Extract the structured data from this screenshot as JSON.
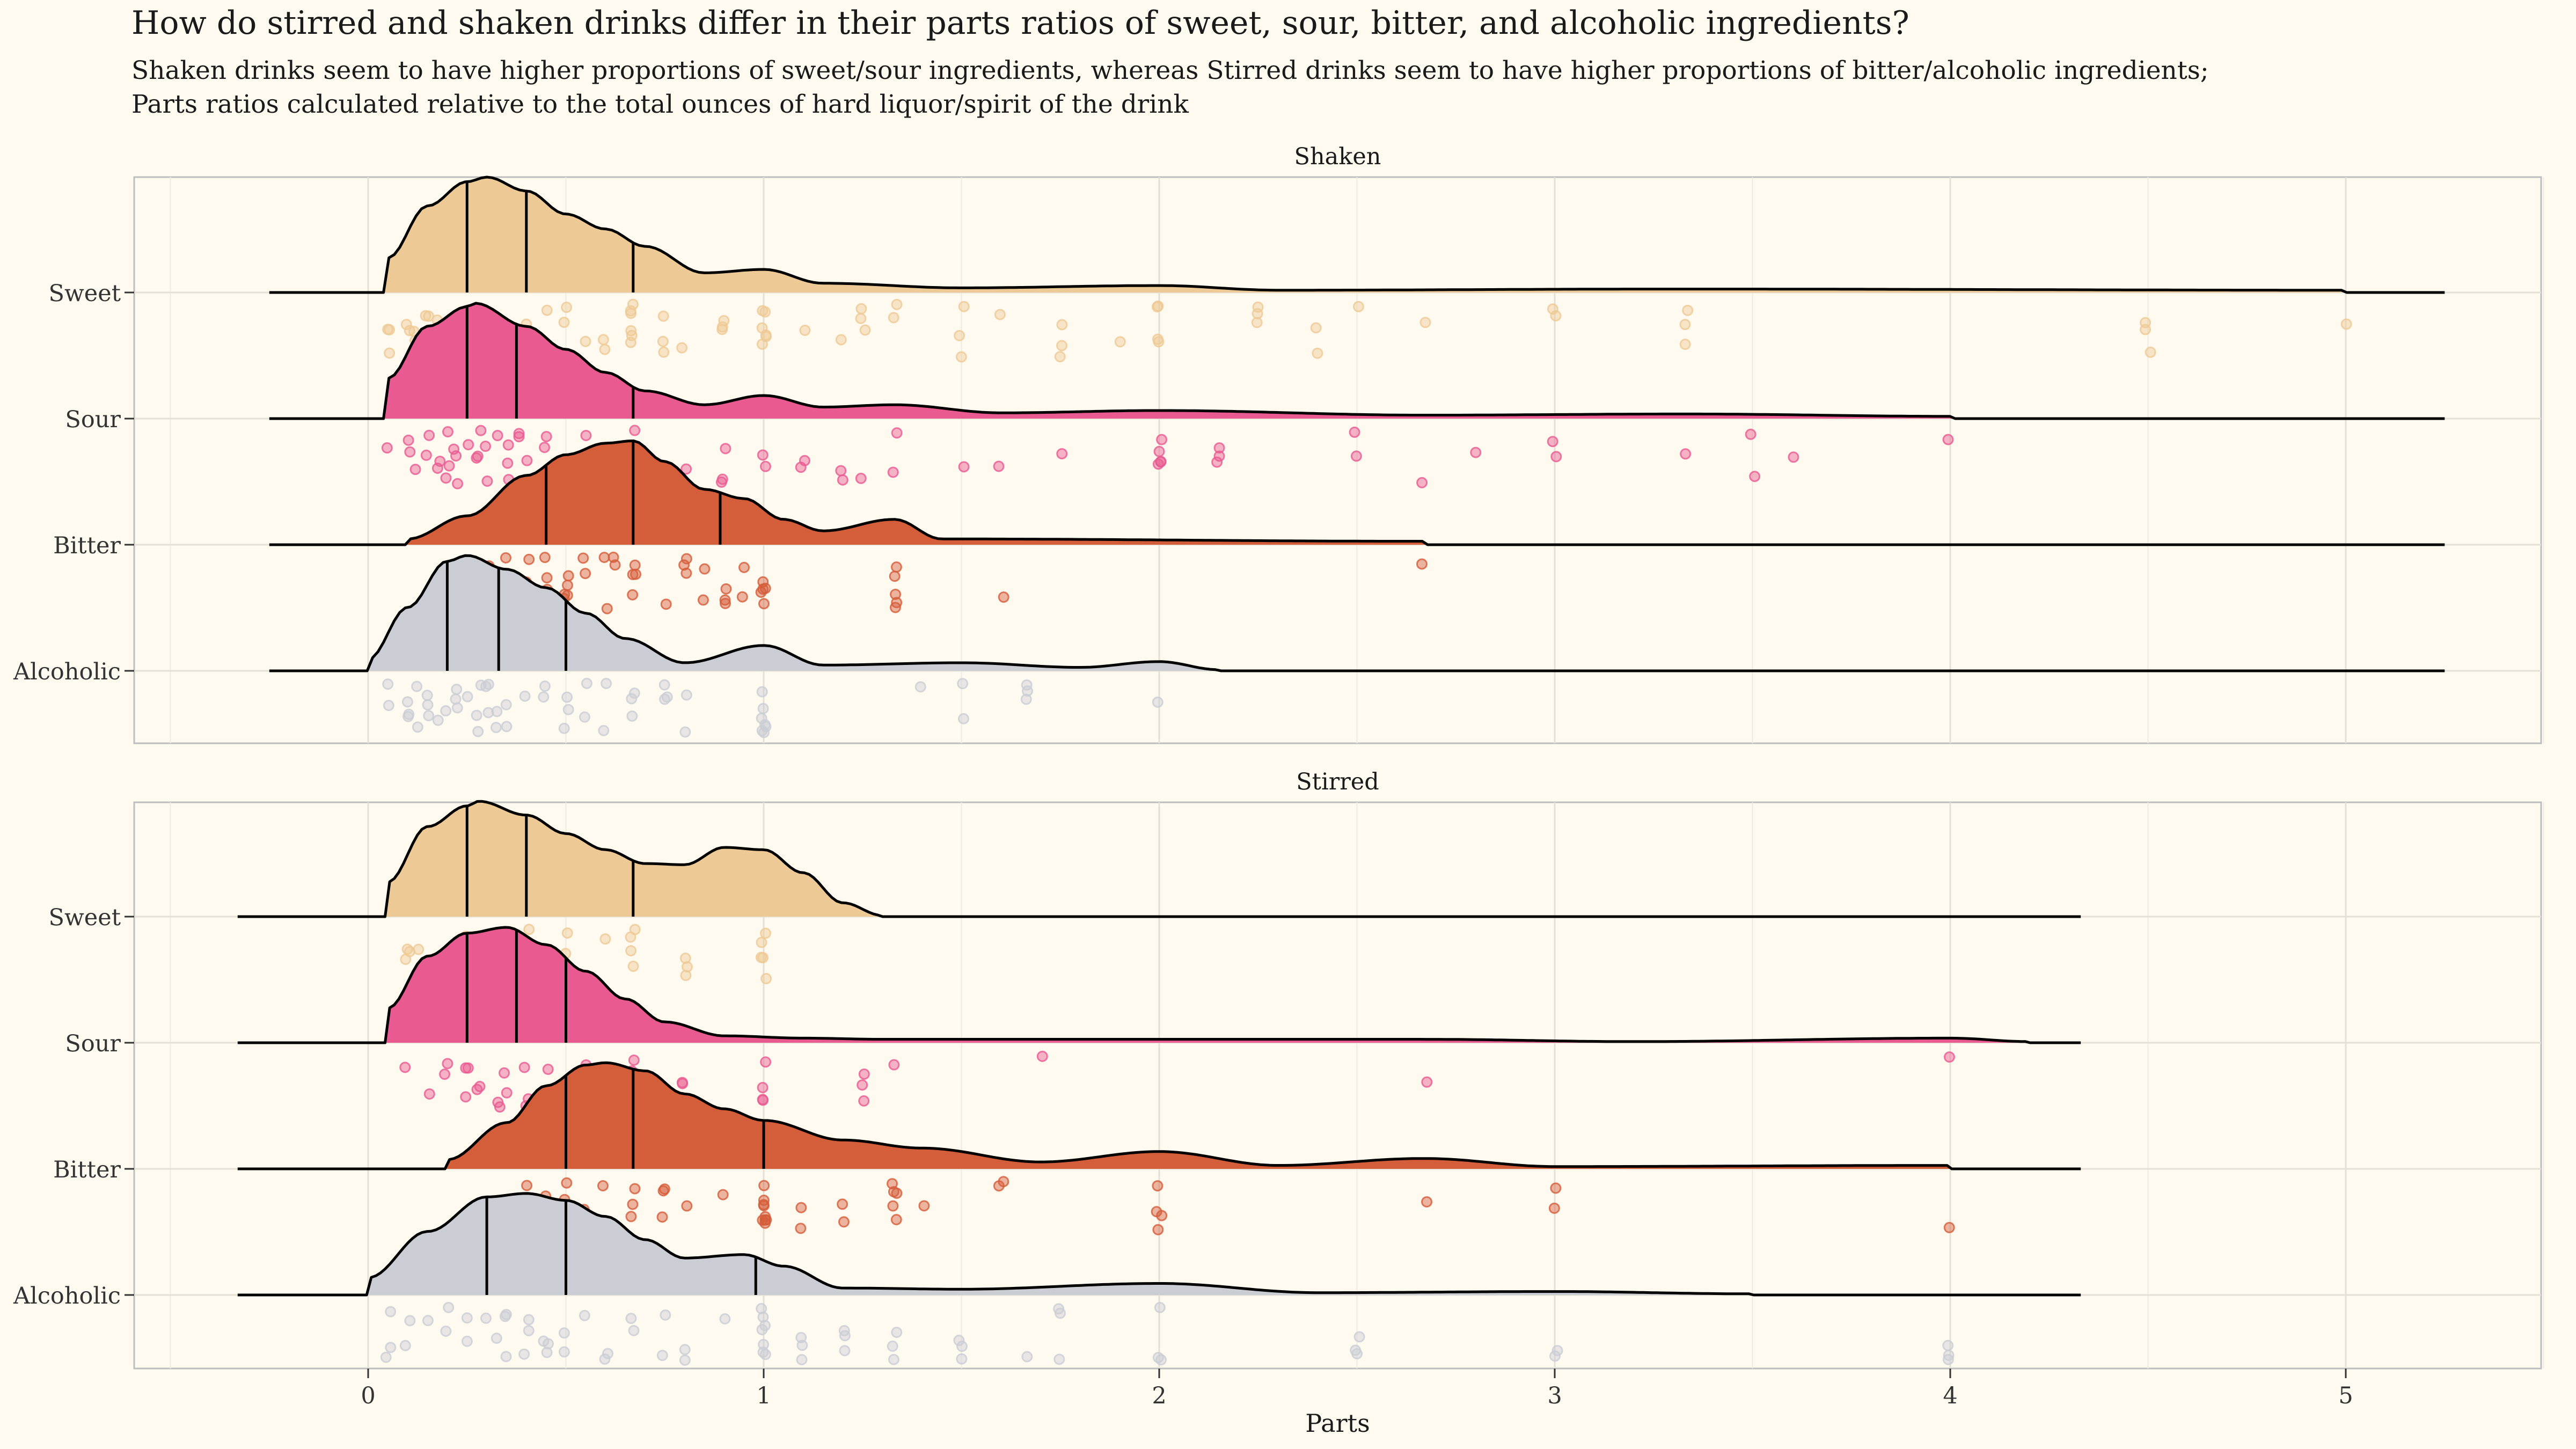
{
  "title": "How do stirred and shaken drinks differ in their parts ratios of sweet, sour, bitter, and alcoholic ingredients?",
  "subtitle_line1": "Shaken drinks seem to have higher proportions of sweet/sour ingredients, whereas Stirred drinks seem to have higher proportions of bitter/alcoholic ingredients;",
  "subtitle_line2": "Parts ratios calculated relative to the total ounces of hard liquor/spirit of the drink",
  "colors": {
    "Sweet": "#edc995",
    "Sour": "#e95a91",
    "Bitter": "#d45d3a",
    "Alcoholic": "#cbcdd4",
    "background": "#fffaf0"
  },
  "chart_data": {
    "type": "ridgeline",
    "xlabel": "Parts",
    "ylabel": "",
    "xlim": [
      -0.5,
      5.5
    ],
    "x_ticks": [
      0,
      1,
      2,
      3,
      4,
      5
    ],
    "categories": [
      "Sweet",
      "Sour",
      "Bitter",
      "Alcoholic"
    ],
    "grid": true,
    "panels": [
      {
        "name": "Shaken",
        "range": [
          -0.25,
          5.25
        ],
        "series": [
          {
            "name": "Sweet",
            "quartiles": [
              0.25,
              0.4,
              0.67
            ],
            "density": [
              [
                0.05,
                0.3
              ],
              [
                0.15,
                0.75
              ],
              [
                0.25,
                0.96
              ],
              [
                0.3,
                1.0
              ],
              [
                0.4,
                0.88
              ],
              [
                0.5,
                0.68
              ],
              [
                0.6,
                0.55
              ],
              [
                0.7,
                0.4
              ],
              [
                0.85,
                0.17
              ],
              [
                1.0,
                0.2
              ],
              [
                1.15,
                0.08
              ],
              [
                1.5,
                0.04
              ],
              [
                2.0,
                0.06
              ],
              [
                2.3,
                0.02
              ],
              [
                3.3,
                0.03
              ],
              [
                5.0,
                0.02
              ]
            ],
            "points": [
              0.05,
              0.1,
              0.12,
              0.15,
              0.18,
              0.2,
              0.22,
              0.25,
              0.28,
              0.3,
              0.33,
              0.35,
              0.4,
              0.45,
              0.5,
              0.5,
              0.55,
              0.6,
              0.67,
              0.67,
              0.75,
              0.8,
              0.9,
              1.0,
              1.0,
              1.0,
              1.1,
              1.2,
              1.25,
              1.33,
              1.5,
              1.6,
              1.75,
              1.9,
              2.0,
              2.0,
              2.25,
              2.4,
              2.5,
              2.67,
              3.0,
              3.0,
              3.33,
              4.5,
              5.0
            ]
          },
          {
            "name": "Sour",
            "quartiles": [
              0.25,
              0.375,
              0.67
            ],
            "density": [
              [
                0.05,
                0.35
              ],
              [
                0.15,
                0.8
              ],
              [
                0.25,
                0.97
              ],
              [
                0.27,
                1.0
              ],
              [
                0.4,
                0.8
              ],
              [
                0.5,
                0.6
              ],
              [
                0.6,
                0.4
              ],
              [
                0.7,
                0.24
              ],
              [
                0.85,
                0.12
              ],
              [
                1.0,
                0.2
              ],
              [
                1.15,
                0.1
              ],
              [
                1.33,
                0.12
              ],
              [
                1.6,
                0.05
              ],
              [
                2.0,
                0.07
              ],
              [
                2.67,
                0.03
              ],
              [
                3.33,
                0.04
              ],
              [
                4.0,
                0.02
              ]
            ],
            "points": [
              0.05,
              0.1,
              0.12,
              0.15,
              0.18,
              0.2,
              0.22,
              0.25,
              0.28,
              0.3,
              0.33,
              0.35,
              0.38,
              0.4,
              0.45,
              0.5,
              0.5,
              0.55,
              0.6,
              0.67,
              0.67,
              0.75,
              0.8,
              0.9,
              1.0,
              1.0,
              1.1,
              1.2,
              1.25,
              1.33,
              1.5,
              1.6,
              1.75,
              2.0,
              2.0,
              2.15,
              2.5,
              2.67,
              2.8,
              3.0,
              3.33,
              3.5,
              3.6,
              4.0
            ]
          },
          {
            "name": "Bitter",
            "quartiles": [
              0.45,
              0.67,
              0.89
            ],
            "density": [
              [
                0.1,
                0.05
              ],
              [
                0.25,
                0.25
              ],
              [
                0.4,
                0.6
              ],
              [
                0.5,
                0.78
              ],
              [
                0.6,
                0.88
              ],
              [
                0.67,
                0.9
              ],
              [
                0.75,
                0.72
              ],
              [
                0.85,
                0.48
              ],
              [
                0.95,
                0.4
              ],
              [
                1.05,
                0.22
              ],
              [
                1.15,
                0.12
              ],
              [
                1.33,
                0.22
              ],
              [
                1.45,
                0.05
              ],
              [
                2.67,
                0.03
              ]
            ],
            "points": [
              0.3,
              0.35,
              0.4,
              0.45,
              0.5,
              0.5,
              0.55,
              0.6,
              0.62,
              0.67,
              0.67,
              0.75,
              0.8,
              0.85,
              0.9,
              0.95,
              1.0,
              1.0,
              1.33,
              1.33,
              1.6,
              2.67
            ]
          },
          {
            "name": "Alcoholic",
            "quartiles": [
              0.2,
              0.33,
              0.5
            ],
            "density": [
              [
                0.0,
                0.1
              ],
              [
                0.1,
                0.55
              ],
              [
                0.2,
                0.95
              ],
              [
                0.25,
                1.0
              ],
              [
                0.35,
                0.88
              ],
              [
                0.45,
                0.72
              ],
              [
                0.55,
                0.5
              ],
              [
                0.65,
                0.28
              ],
              [
                0.8,
                0.07
              ],
              [
                1.0,
                0.22
              ],
              [
                1.15,
                0.05
              ],
              [
                1.5,
                0.07
              ],
              [
                1.8,
                0.03
              ],
              [
                2.0,
                0.08
              ],
              [
                2.15,
                0.01
              ]
            ],
            "points": [
              0.05,
              0.1,
              0.12,
              0.15,
              0.18,
              0.2,
              0.22,
              0.25,
              0.28,
              0.3,
              0.33,
              0.35,
              0.4,
              0.45,
              0.5,
              0.5,
              0.55,
              0.6,
              0.67,
              0.75,
              0.8,
              1.0,
              1.0,
              1.0,
              1.4,
              1.5,
              1.67,
              2.0
            ]
          }
        ]
      },
      {
        "name": "Stirred",
        "range": [
          -0.33,
          4.33
        ],
        "series": [
          {
            "name": "Sweet",
            "quartiles": [
              0.25,
              0.4,
              0.67
            ],
            "density": [
              [
                0.05,
                0.3
              ],
              [
                0.15,
                0.78
              ],
              [
                0.25,
                0.96
              ],
              [
                0.28,
                1.0
              ],
              [
                0.4,
                0.88
              ],
              [
                0.5,
                0.72
              ],
              [
                0.6,
                0.58
              ],
              [
                0.7,
                0.46
              ],
              [
                0.8,
                0.45
              ],
              [
                0.9,
                0.6
              ],
              [
                1.0,
                0.58
              ],
              [
                1.1,
                0.38
              ],
              [
                1.2,
                0.12
              ],
              [
                1.3,
                0.01
              ]
            ],
            "points": [
              0.1,
              0.13,
              0.2,
              0.25,
              0.3,
              0.33,
              0.4,
              0.5,
              0.5,
              0.6,
              0.67,
              0.67,
              0.8,
              1.0,
              1.0
            ]
          },
          {
            "name": "Sour",
            "quartiles": [
              0.25,
              0.375,
              0.5
            ],
            "density": [
              [
                0.05,
                0.3
              ],
              [
                0.15,
                0.75
              ],
              [
                0.25,
                0.95
              ],
              [
                0.35,
                1.0
              ],
              [
                0.45,
                0.85
              ],
              [
                0.55,
                0.62
              ],
              [
                0.65,
                0.38
              ],
              [
                0.75,
                0.18
              ],
              [
                0.9,
                0.06
              ],
              [
                1.1,
                0.04
              ],
              [
                1.3,
                0.03
              ],
              [
                1.7,
                0.03
              ],
              [
                2.67,
                0.03
              ],
              [
                3.2,
                0.01
              ],
              [
                4.0,
                0.04
              ],
              [
                4.2,
                0.01
              ]
            ],
            "points": [
              0.1,
              0.15,
              0.2,
              0.25,
              0.28,
              0.33,
              0.35,
              0.4,
              0.45,
              0.5,
              0.55,
              0.6,
              0.67,
              0.75,
              0.8,
              1.0,
              1.0,
              1.25,
              1.33,
              1.7,
              2.67,
              4.0
            ]
          },
          {
            "name": "Bitter",
            "quartiles": [
              0.5,
              0.67,
              1.0
            ],
            "density": [
              [
                0.2,
                0.08
              ],
              [
                0.35,
                0.4
              ],
              [
                0.45,
                0.72
              ],
              [
                0.55,
                0.9
              ],
              [
                0.6,
                0.92
              ],
              [
                0.7,
                0.85
              ],
              [
                0.8,
                0.65
              ],
              [
                0.9,
                0.52
              ],
              [
                1.0,
                0.42
              ],
              [
                1.2,
                0.25
              ],
              [
                1.4,
                0.18
              ],
              [
                1.7,
                0.06
              ],
              [
                2.0,
                0.15
              ],
              [
                2.3,
                0.03
              ],
              [
                2.67,
                0.09
              ],
              [
                3.0,
                0.02
              ],
              [
                4.0,
                0.03
              ]
            ],
            "points": [
              0.4,
              0.45,
              0.5,
              0.5,
              0.55,
              0.6,
              0.67,
              0.67,
              0.75,
              0.8,
              0.9,
              1.0,
              1.0,
              1.0,
              1.1,
              1.2,
              1.33,
              1.33,
              1.4,
              1.6,
              2.0,
              2.0,
              2.67,
              3.0,
              4.0
            ]
          },
          {
            "name": "Alcoholic",
            "quartiles": [
              0.3,
              0.5,
              0.98
            ],
            "density": [
              [
                0.0,
                0.15
              ],
              [
                0.15,
                0.55
              ],
              [
                0.3,
                0.85
              ],
              [
                0.4,
                0.88
              ],
              [
                0.5,
                0.82
              ],
              [
                0.6,
                0.68
              ],
              [
                0.7,
                0.48
              ],
              [
                0.8,
                0.32
              ],
              [
                0.95,
                0.35
              ],
              [
                1.05,
                0.25
              ],
              [
                1.2,
                0.06
              ],
              [
                1.5,
                0.05
              ],
              [
                2.0,
                0.1
              ],
              [
                2.4,
                0.02
              ],
              [
                3.0,
                0.03
              ],
              [
                3.5,
                0.01
              ]
            ],
            "points": [
              0.05,
              0.1,
              0.15,
              0.2,
              0.25,
              0.3,
              0.33,
              0.35,
              0.4,
              0.45,
              0.5,
              0.5,
              0.55,
              0.6,
              0.67,
              0.75,
              0.8,
              0.9,
              1.0,
              1.0,
              1.0,
              1.1,
              1.2,
              1.33,
              1.5,
              1.67,
              1.75,
              2.0,
              2.0,
              2.5,
              3.0,
              4.0
            ]
          }
        ]
      }
    ]
  }
}
